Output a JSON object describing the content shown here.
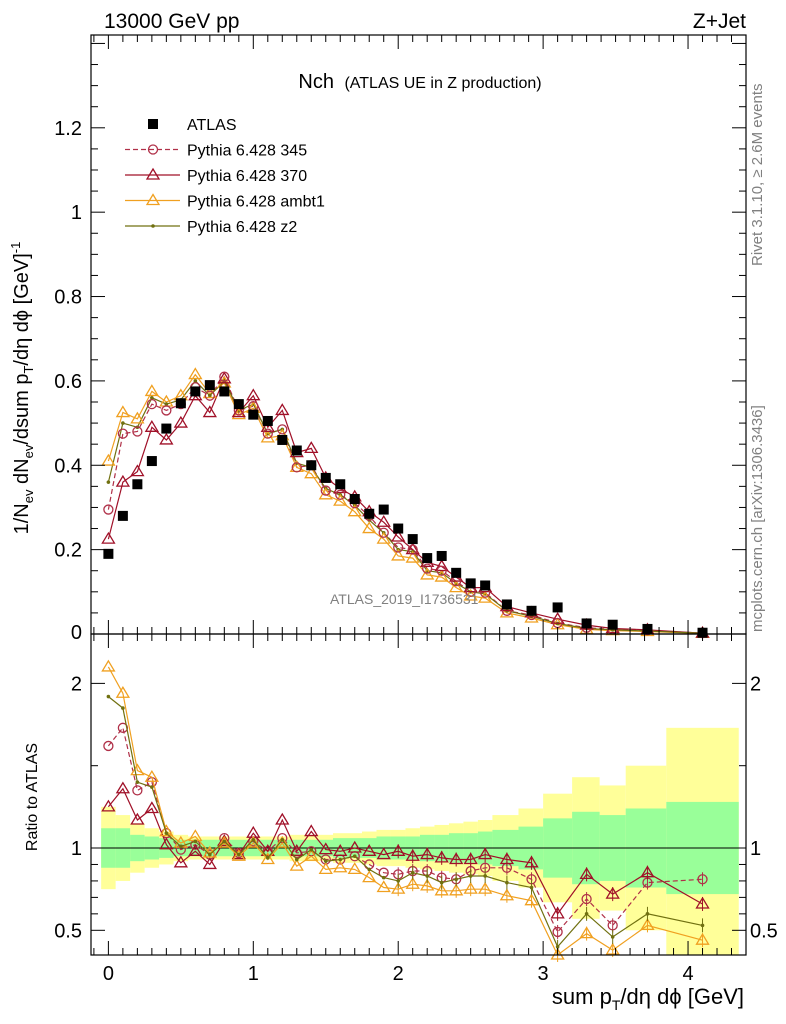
{
  "header": {
    "left": "13000 GeV pp",
    "right": "Z+Jet"
  },
  "side_labels": {
    "rivet": "Rivet 3.1.10, ≥ 2.6M events",
    "mcplots": "mcplots.cern.ch [arXiv:1306.3436]"
  },
  "chart_data": {
    "type": "scatter",
    "title_main": "Nch",
    "title_sub": "(ATLAS UE in Z production)",
    "watermark": "ATLAS_2019_I1736531",
    "xlabel": "sum p_T/dη dϕ [GeV]",
    "ylabel_top": "1/N_ev dN_ev/dsum p_T/dη dϕ [GeV]^-1",
    "ylabel_bottom": "Ratio to ATLAS",
    "xlim": [
      -0.12,
      4.4
    ],
    "ylim_top": [
      0,
      1.42
    ],
    "ylim_bottom": [
      0.35,
      2.3
    ],
    "x_ticks": [
      "0",
      "1",
      "2",
      "3",
      "4"
    ],
    "y_ticks_top": [
      "0.2",
      "0.4",
      "0.6",
      "0.8",
      "1",
      "1.2"
    ],
    "y_ticks_bottom": [
      "0.5",
      "1",
      "2"
    ],
    "legend_position": "top-left",
    "legend": [
      "ATLAS",
      "Pythia 6.428 345",
      "Pythia 6.428 370",
      "Pythia 6.428 ambt1",
      "Pythia 6.428 z2"
    ],
    "x": [
      0.0,
      0.1,
      0.2,
      0.3,
      0.4,
      0.5,
      0.6,
      0.7,
      0.8,
      0.9,
      1.0,
      1.1,
      1.2,
      1.3,
      1.4,
      1.5,
      1.6,
      1.7,
      1.8,
      1.9,
      2.0,
      2.1,
      2.2,
      2.3,
      2.4,
      2.5,
      2.6,
      2.75,
      2.92,
      3.1,
      3.3,
      3.48,
      3.72,
      4.1
    ],
    "bin_edges": [
      -0.05,
      0.05,
      0.15,
      0.25,
      0.35,
      0.45,
      0.55,
      0.65,
      0.75,
      0.85,
      0.95,
      1.05,
      1.15,
      1.25,
      1.35,
      1.45,
      1.55,
      1.65,
      1.75,
      1.85,
      1.95,
      2.05,
      2.15,
      2.25,
      2.35,
      2.45,
      2.55,
      2.65,
      2.83,
      3.0,
      3.2,
      3.39,
      3.57,
      3.85,
      4.35
    ],
    "series": [
      {
        "name": "ATLAS",
        "color": "#000000",
        "marker": "square",
        "values": [
          0.19,
          0.28,
          0.355,
          0.41,
          0.487,
          0.547,
          0.575,
          0.59,
          0.575,
          0.545,
          0.52,
          0.505,
          0.46,
          0.435,
          0.4,
          0.37,
          0.355,
          0.32,
          0.285,
          0.295,
          0.25,
          0.225,
          0.18,
          0.185,
          0.145,
          0.12,
          0.115,
          0.07,
          0.055,
          0.063,
          0.025,
          0.022,
          0.012,
          0.003
        ]
      },
      {
        "name": "Pythia 6.428 345",
        "color": "#b03048",
        "marker": "circle",
        "dashed": true,
        "values": [
          0.295,
          0.475,
          0.48,
          0.545,
          0.53,
          0.545,
          0.585,
          0.565,
          0.61,
          0.53,
          0.54,
          0.475,
          0.485,
          0.395,
          0.4,
          0.34,
          0.33,
          0.31,
          0.28,
          0.24,
          0.205,
          0.2,
          0.155,
          0.15,
          0.125,
          0.1,
          0.098,
          0.055,
          0.045,
          0.026,
          0.015,
          0.011,
          0.009,
          0.002
        ]
      },
      {
        "name": "Pythia 6.428 370",
        "color": "#a01028",
        "marker": "triangle",
        "values": [
          0.225,
          0.36,
          0.385,
          0.49,
          0.46,
          0.5,
          0.565,
          0.525,
          0.605,
          0.525,
          0.565,
          0.49,
          0.53,
          0.43,
          0.44,
          0.37,
          0.345,
          0.325,
          0.29,
          0.265,
          0.23,
          0.2,
          0.17,
          0.16,
          0.135,
          0.11,
          0.11,
          0.065,
          0.05,
          0.035,
          0.021,
          0.013,
          0.01,
          0.002
        ]
      },
      {
        "name": "Pythia 6.428 ambt1",
        "color": "#f0a020",
        "marker": "triangle",
        "values": [
          0.41,
          0.525,
          0.51,
          0.575,
          0.55,
          0.565,
          0.615,
          0.57,
          0.595,
          0.52,
          0.535,
          0.465,
          0.47,
          0.395,
          0.38,
          0.33,
          0.315,
          0.29,
          0.25,
          0.225,
          0.185,
          0.18,
          0.14,
          0.135,
          0.11,
          0.09,
          0.085,
          0.05,
          0.038,
          0.022,
          0.011,
          0.008,
          0.006,
          0.0015
        ]
      },
      {
        "name": "Pythia 6.428 z2",
        "color": "#707010",
        "marker": "dot",
        "values": [
          0.36,
          0.5,
          0.49,
          0.56,
          0.545,
          0.555,
          0.6,
          0.565,
          0.6,
          0.53,
          0.545,
          0.475,
          0.485,
          0.405,
          0.395,
          0.345,
          0.33,
          0.305,
          0.27,
          0.24,
          0.2,
          0.195,
          0.15,
          0.145,
          0.12,
          0.1,
          0.095,
          0.055,
          0.042,
          0.025,
          0.013,
          0.01,
          0.007,
          0.0018
        ]
      }
    ],
    "ratios": [
      {
        "name": "Pythia 6.428 345",
        "values": [
          1.62,
          1.73,
          1.35,
          1.4,
          1.09,
          0.99,
          1.02,
          0.96,
          1.06,
          0.97,
          1.04,
          0.98,
          1.06,
          0.97,
          0.98,
          0.93,
          0.93,
          0.95,
          0.9,
          0.85,
          0.84,
          0.86,
          0.86,
          0.82,
          0.81,
          0.86,
          0.88,
          0.88,
          0.81,
          0.49,
          0.69,
          0.53,
          0.79,
          0.81
        ]
      },
      {
        "name": "Pythia 6.428 370",
        "values": [
          1.25,
          1.36,
          1.17,
          1.24,
          1.02,
          0.91,
          0.98,
          0.9,
          1.04,
          0.96,
          1.09,
          0.98,
          1.17,
          0.98,
          1.1,
          0.99,
          0.98,
          1.0,
          0.98,
          0.96,
          0.98,
          0.95,
          0.96,
          0.94,
          0.93,
          0.93,
          0.96,
          0.93,
          0.91,
          0.6,
          0.84,
          0.72,
          0.85,
          0.66
        ]
      },
      {
        "name": "Pythia 6.428 ambt1",
        "values": [
          2.1,
          1.94,
          1.47,
          1.43,
          1.1,
          1.03,
          1.07,
          0.97,
          1.03,
          0.95,
          1.03,
          0.93,
          1.03,
          0.89,
          0.95,
          0.87,
          0.88,
          0.87,
          0.82,
          0.76,
          0.75,
          0.78,
          0.77,
          0.74,
          0.74,
          0.75,
          0.75,
          0.71,
          0.68,
          0.35,
          0.48,
          0.38,
          0.53,
          0.44
        ]
      },
      {
        "name": "Pythia 6.428 z2",
        "values": [
          1.92,
          1.85,
          1.4,
          1.37,
          1.09,
          1.01,
          1.04,
          0.96,
          1.04,
          0.96,
          1.05,
          0.94,
          1.05,
          0.93,
          0.99,
          0.92,
          0.93,
          0.95,
          0.87,
          0.82,
          0.8,
          0.85,
          0.83,
          0.79,
          0.81,
          0.83,
          0.83,
          0.79,
          0.76,
          0.4,
          0.6,
          0.46,
          0.6,
          0.53
        ]
      }
    ],
    "uncertainty_bands": {
      "inner": [
        0.12,
        0.12,
        0.08,
        0.07,
        0.06,
        0.05,
        0.05,
        0.05,
        0.05,
        0.05,
        0.05,
        0.05,
        0.05,
        0.05,
        0.05,
        0.05,
        0.06,
        0.06,
        0.06,
        0.07,
        0.07,
        0.07,
        0.08,
        0.08,
        0.09,
        0.09,
        0.1,
        0.11,
        0.13,
        0.18,
        0.22,
        0.2,
        0.24,
        0.28
      ],
      "outer": [
        0.25,
        0.2,
        0.15,
        0.12,
        0.1,
        0.08,
        0.07,
        0.07,
        0.07,
        0.07,
        0.07,
        0.07,
        0.07,
        0.08,
        0.08,
        0.08,
        0.09,
        0.09,
        0.1,
        0.11,
        0.11,
        0.12,
        0.13,
        0.14,
        0.15,
        0.16,
        0.17,
        0.2,
        0.24,
        0.33,
        0.43,
        0.38,
        0.5,
        0.73
      ]
    }
  }
}
